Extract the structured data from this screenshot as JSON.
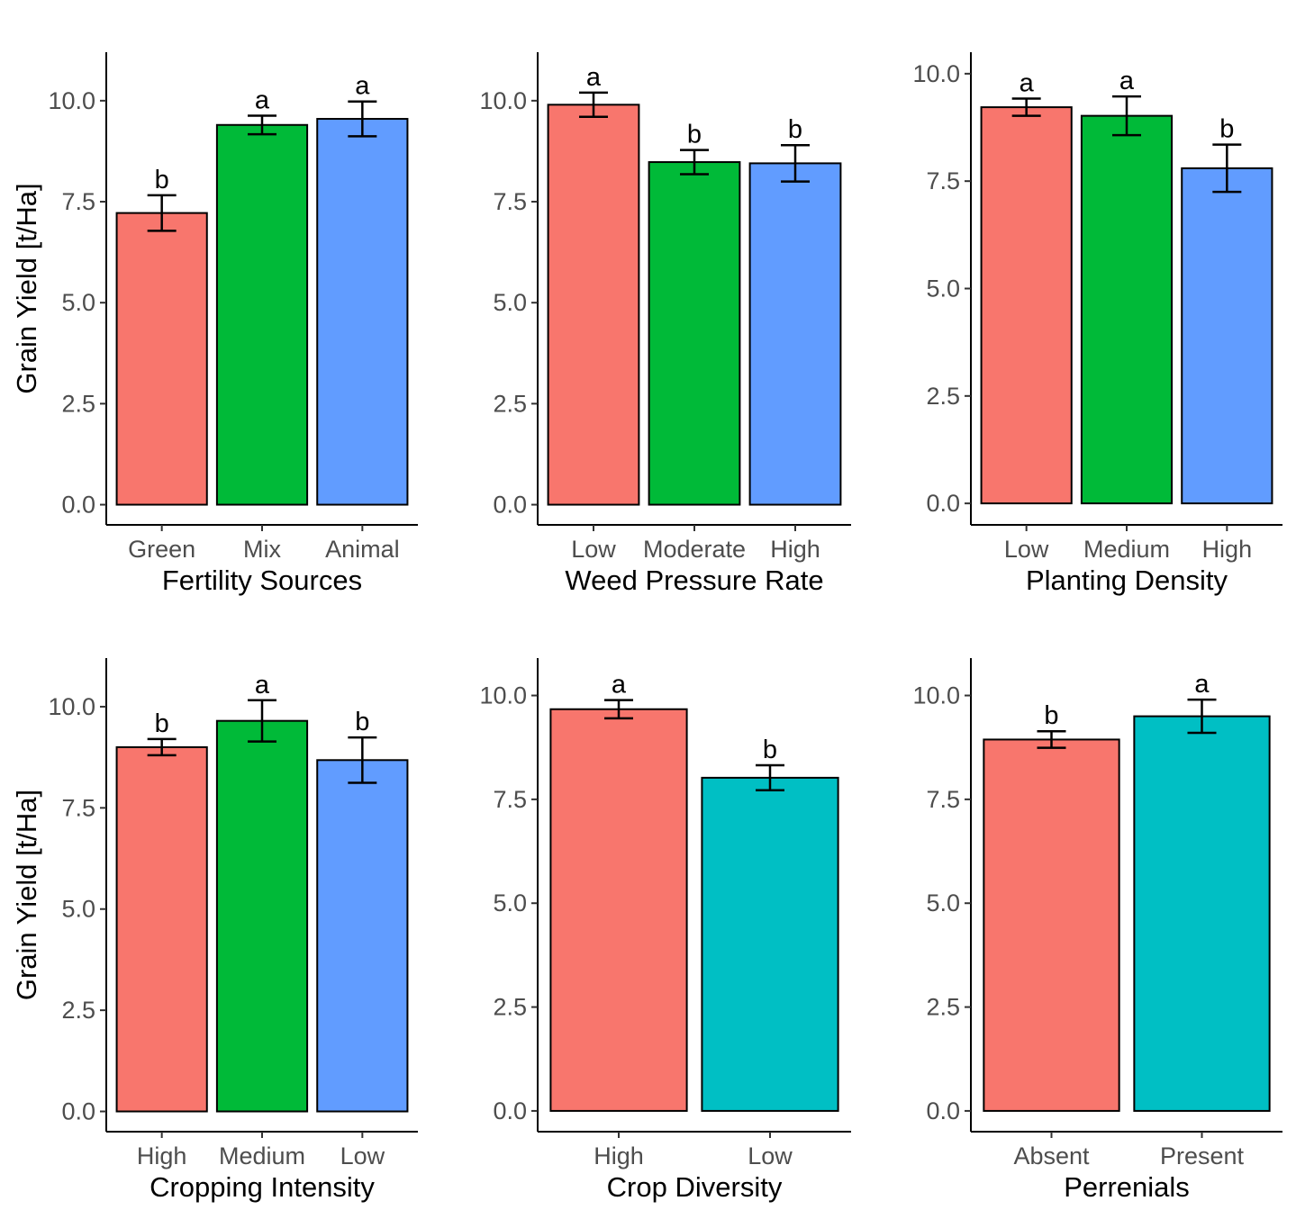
{
  "chart_data": [
    {
      "type": "bar",
      "xlabel": "Fertility Sources",
      "ylabel": "Grain Yield [t/Ha]",
      "categories": [
        "Green",
        "Mix",
        "Animal"
      ],
      "values": [
        7.22,
        9.4,
        9.55
      ],
      "error_low": [
        6.78,
        9.17,
        9.12
      ],
      "error_high": [
        7.66,
        9.63,
        9.98
      ],
      "letters": [
        "b",
        "a",
        "a"
      ],
      "colors": [
        "#F8766D",
        "#00BA38",
        "#619CFF"
      ],
      "ylim": [
        -0.5,
        11.2
      ],
      "yticks": [
        "0.0",
        "2.5",
        "5.0",
        "7.5",
        "10.0"
      ]
    },
    {
      "type": "bar",
      "xlabel": "Weed Pressure Rate",
      "ylabel": "",
      "categories": [
        "Low",
        "Moderate",
        "High"
      ],
      "values": [
        9.9,
        8.48,
        8.45
      ],
      "error_low": [
        9.6,
        8.18,
        8.0
      ],
      "error_high": [
        10.2,
        8.78,
        8.9
      ],
      "letters": [
        "a",
        "b",
        "b"
      ],
      "colors": [
        "#F8766D",
        "#00BA38",
        "#619CFF"
      ],
      "ylim": [
        -0.5,
        11.2
      ],
      "yticks": [
        "0.0",
        "2.5",
        "5.0",
        "7.5",
        "10.0"
      ]
    },
    {
      "type": "bar",
      "xlabel": "Planting Density",
      "ylabel": "",
      "categories": [
        "Low",
        "Medium",
        "High"
      ],
      "values": [
        9.22,
        9.02,
        7.8
      ],
      "error_low": [
        9.02,
        8.57,
        7.25
      ],
      "error_high": [
        9.42,
        9.47,
        8.35
      ],
      "letters": [
        "a",
        "a",
        "b"
      ],
      "colors": [
        "#F8766D",
        "#00BA38",
        "#619CFF"
      ],
      "ylim": [
        -0.5,
        10.5
      ],
      "yticks": [
        "0.0",
        "2.5",
        "5.0",
        "7.5",
        "10.0"
      ]
    },
    {
      "type": "bar",
      "xlabel": "Cropping Intensity",
      "ylabel": "Grain Yield [t/Ha]",
      "categories": [
        "High",
        "Medium",
        "Low"
      ],
      "values": [
        9.0,
        9.65,
        8.68
      ],
      "error_low": [
        8.8,
        9.14,
        8.12
      ],
      "error_high": [
        9.2,
        10.16,
        9.24
      ],
      "letters": [
        "b",
        "a",
        "b"
      ],
      "colors": [
        "#F8766D",
        "#00BA38",
        "#619CFF"
      ],
      "ylim": [
        -0.5,
        11.2
      ],
      "yticks": [
        "0.0",
        "2.5",
        "5.0",
        "7.5",
        "10.0"
      ]
    },
    {
      "type": "bar",
      "xlabel": "Crop Diversity",
      "ylabel": "",
      "categories": [
        "High",
        "Low"
      ],
      "values": [
        9.67,
        8.02
      ],
      "error_low": [
        9.45,
        7.72
      ],
      "error_high": [
        9.89,
        8.32
      ],
      "letters": [
        "a",
        "b"
      ],
      "colors": [
        "#F8766D",
        "#00BFC4"
      ],
      "ylim": [
        -0.5,
        10.9
      ],
      "yticks": [
        "0.0",
        "2.5",
        "5.0",
        "7.5",
        "10.0"
      ]
    },
    {
      "type": "bar",
      "xlabel": "Perrenials",
      "ylabel": "",
      "categories": [
        "Absent",
        "Present"
      ],
      "values": [
        8.94,
        9.5
      ],
      "error_low": [
        8.74,
        9.1
      ],
      "error_high": [
        9.14,
        9.9
      ],
      "letters": [
        "b",
        "a"
      ],
      "colors": [
        "#F8766D",
        "#00BFC4"
      ],
      "ylim": [
        -0.5,
        10.9
      ],
      "yticks": [
        "0.0",
        "2.5",
        "5.0",
        "7.5",
        "10.0"
      ]
    }
  ]
}
